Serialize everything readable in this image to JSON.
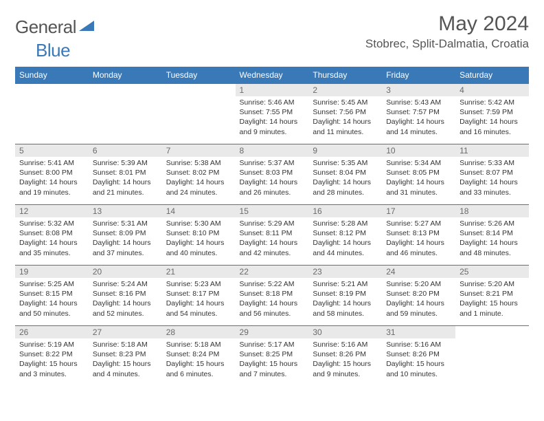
{
  "brand": {
    "left": "General",
    "right": "Blue"
  },
  "title": "May 2024",
  "location": "Stobrec, Split-Dalmatia, Croatia",
  "colors": {
    "accent": "#3a79b7",
    "daybg": "#e9e9e9",
    "text": "#333333"
  },
  "weekdays": [
    "Sunday",
    "Monday",
    "Tuesday",
    "Wednesday",
    "Thursday",
    "Friday",
    "Saturday"
  ],
  "weeks": [
    [
      {
        "n": "",
        "sr": "",
        "ss": "",
        "dl": ""
      },
      {
        "n": "",
        "sr": "",
        "ss": "",
        "dl": ""
      },
      {
        "n": "",
        "sr": "",
        "ss": "",
        "dl": ""
      },
      {
        "n": "1",
        "sr": "Sunrise: 5:46 AM",
        "ss": "Sunset: 7:55 PM",
        "dl": "Daylight: 14 hours and 9 minutes."
      },
      {
        "n": "2",
        "sr": "Sunrise: 5:45 AM",
        "ss": "Sunset: 7:56 PM",
        "dl": "Daylight: 14 hours and 11 minutes."
      },
      {
        "n": "3",
        "sr": "Sunrise: 5:43 AM",
        "ss": "Sunset: 7:57 PM",
        "dl": "Daylight: 14 hours and 14 minutes."
      },
      {
        "n": "4",
        "sr": "Sunrise: 5:42 AM",
        "ss": "Sunset: 7:59 PM",
        "dl": "Daylight: 14 hours and 16 minutes."
      }
    ],
    [
      {
        "n": "5",
        "sr": "Sunrise: 5:41 AM",
        "ss": "Sunset: 8:00 PM",
        "dl": "Daylight: 14 hours and 19 minutes."
      },
      {
        "n": "6",
        "sr": "Sunrise: 5:39 AM",
        "ss": "Sunset: 8:01 PM",
        "dl": "Daylight: 14 hours and 21 minutes."
      },
      {
        "n": "7",
        "sr": "Sunrise: 5:38 AM",
        "ss": "Sunset: 8:02 PM",
        "dl": "Daylight: 14 hours and 24 minutes."
      },
      {
        "n": "8",
        "sr": "Sunrise: 5:37 AM",
        "ss": "Sunset: 8:03 PM",
        "dl": "Daylight: 14 hours and 26 minutes."
      },
      {
        "n": "9",
        "sr": "Sunrise: 5:35 AM",
        "ss": "Sunset: 8:04 PM",
        "dl": "Daylight: 14 hours and 28 minutes."
      },
      {
        "n": "10",
        "sr": "Sunrise: 5:34 AM",
        "ss": "Sunset: 8:05 PM",
        "dl": "Daylight: 14 hours and 31 minutes."
      },
      {
        "n": "11",
        "sr": "Sunrise: 5:33 AM",
        "ss": "Sunset: 8:07 PM",
        "dl": "Daylight: 14 hours and 33 minutes."
      }
    ],
    [
      {
        "n": "12",
        "sr": "Sunrise: 5:32 AM",
        "ss": "Sunset: 8:08 PM",
        "dl": "Daylight: 14 hours and 35 minutes."
      },
      {
        "n": "13",
        "sr": "Sunrise: 5:31 AM",
        "ss": "Sunset: 8:09 PM",
        "dl": "Daylight: 14 hours and 37 minutes."
      },
      {
        "n": "14",
        "sr": "Sunrise: 5:30 AM",
        "ss": "Sunset: 8:10 PM",
        "dl": "Daylight: 14 hours and 40 minutes."
      },
      {
        "n": "15",
        "sr": "Sunrise: 5:29 AM",
        "ss": "Sunset: 8:11 PM",
        "dl": "Daylight: 14 hours and 42 minutes."
      },
      {
        "n": "16",
        "sr": "Sunrise: 5:28 AM",
        "ss": "Sunset: 8:12 PM",
        "dl": "Daylight: 14 hours and 44 minutes."
      },
      {
        "n": "17",
        "sr": "Sunrise: 5:27 AM",
        "ss": "Sunset: 8:13 PM",
        "dl": "Daylight: 14 hours and 46 minutes."
      },
      {
        "n": "18",
        "sr": "Sunrise: 5:26 AM",
        "ss": "Sunset: 8:14 PM",
        "dl": "Daylight: 14 hours and 48 minutes."
      }
    ],
    [
      {
        "n": "19",
        "sr": "Sunrise: 5:25 AM",
        "ss": "Sunset: 8:15 PM",
        "dl": "Daylight: 14 hours and 50 minutes."
      },
      {
        "n": "20",
        "sr": "Sunrise: 5:24 AM",
        "ss": "Sunset: 8:16 PM",
        "dl": "Daylight: 14 hours and 52 minutes."
      },
      {
        "n": "21",
        "sr": "Sunrise: 5:23 AM",
        "ss": "Sunset: 8:17 PM",
        "dl": "Daylight: 14 hours and 54 minutes."
      },
      {
        "n": "22",
        "sr": "Sunrise: 5:22 AM",
        "ss": "Sunset: 8:18 PM",
        "dl": "Daylight: 14 hours and 56 minutes."
      },
      {
        "n": "23",
        "sr": "Sunrise: 5:21 AM",
        "ss": "Sunset: 8:19 PM",
        "dl": "Daylight: 14 hours and 58 minutes."
      },
      {
        "n": "24",
        "sr": "Sunrise: 5:20 AM",
        "ss": "Sunset: 8:20 PM",
        "dl": "Daylight: 14 hours and 59 minutes."
      },
      {
        "n": "25",
        "sr": "Sunrise: 5:20 AM",
        "ss": "Sunset: 8:21 PM",
        "dl": "Daylight: 15 hours and 1 minute."
      }
    ],
    [
      {
        "n": "26",
        "sr": "Sunrise: 5:19 AM",
        "ss": "Sunset: 8:22 PM",
        "dl": "Daylight: 15 hours and 3 minutes."
      },
      {
        "n": "27",
        "sr": "Sunrise: 5:18 AM",
        "ss": "Sunset: 8:23 PM",
        "dl": "Daylight: 15 hours and 4 minutes."
      },
      {
        "n": "28",
        "sr": "Sunrise: 5:18 AM",
        "ss": "Sunset: 8:24 PM",
        "dl": "Daylight: 15 hours and 6 minutes."
      },
      {
        "n": "29",
        "sr": "Sunrise: 5:17 AM",
        "ss": "Sunset: 8:25 PM",
        "dl": "Daylight: 15 hours and 7 minutes."
      },
      {
        "n": "30",
        "sr": "Sunrise: 5:16 AM",
        "ss": "Sunset: 8:26 PM",
        "dl": "Daylight: 15 hours and 9 minutes."
      },
      {
        "n": "31",
        "sr": "Sunrise: 5:16 AM",
        "ss": "Sunset: 8:26 PM",
        "dl": "Daylight: 15 hours and 10 minutes."
      },
      {
        "n": "",
        "sr": "",
        "ss": "",
        "dl": ""
      }
    ]
  ]
}
